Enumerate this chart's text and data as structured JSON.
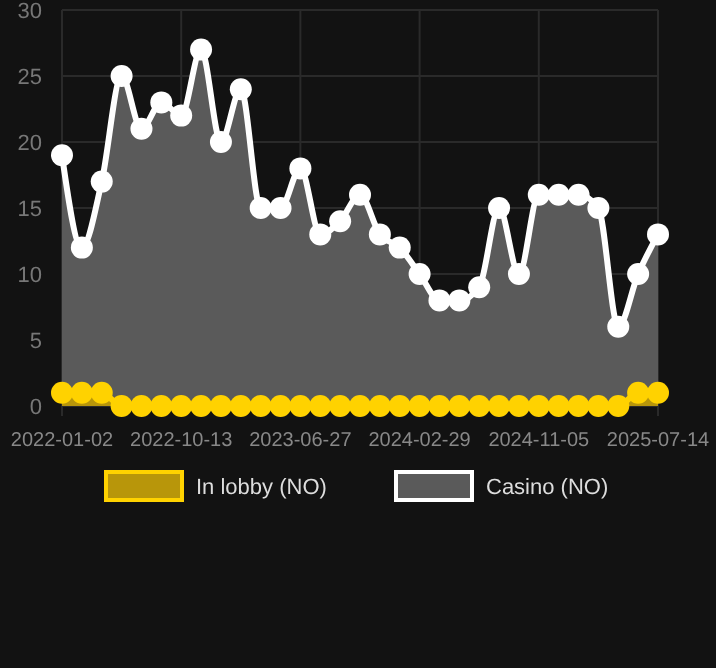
{
  "chart_data": {
    "type": "area",
    "categories": [
      "2022-01-02",
      null,
      null,
      null,
      null,
      null,
      "2022-10-13",
      null,
      null,
      null,
      null,
      null,
      "2023-06-27",
      null,
      null,
      null,
      null,
      null,
      "2024-02-29",
      null,
      null,
      null,
      null,
      null,
      "2024-11-05",
      null,
      null,
      null,
      null,
      null,
      "2025-07-14"
    ],
    "series": [
      {
        "name": "In lobby (NO)",
        "color": "#ffd200",
        "values": [
          1,
          1,
          1,
          0,
          0,
          0,
          0,
          0,
          0,
          0,
          0,
          0,
          0,
          0,
          0,
          0,
          0,
          0,
          0,
          0,
          0,
          0,
          0,
          0,
          0,
          0,
          0,
          0,
          0,
          1,
          1
        ]
      },
      {
        "name": "Casino (NO)",
        "color": "#ffffff",
        "values": [
          19,
          12,
          17,
          25,
          21,
          23,
          22,
          27,
          20,
          24,
          15,
          15,
          18,
          13,
          14,
          16,
          13,
          12,
          10,
          8,
          8,
          9,
          15,
          10,
          16,
          16,
          16,
          15,
          6,
          10,
          13
        ]
      }
    ],
    "ylim": [
      0,
      30
    ],
    "yticks": [
      0,
      5,
      10,
      15,
      20,
      25,
      30
    ],
    "grid": true,
    "legend": "bottom",
    "marker": "circle"
  }
}
